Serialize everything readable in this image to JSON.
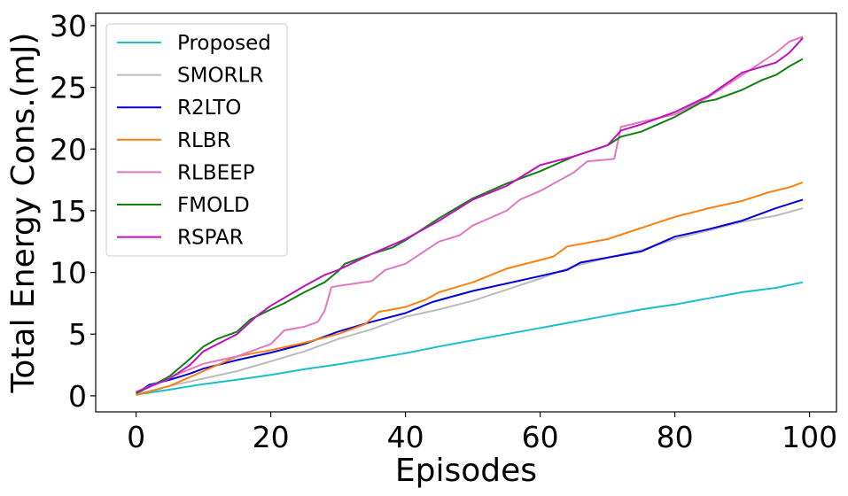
{
  "chart_data": {
    "type": "line",
    "xlabel": "Episodes",
    "ylabel": "Total Energy Cons.(mJ)",
    "xlim": [
      -6,
      104
    ],
    "ylim": [
      -1.3,
      31
    ],
    "xticks": [
      0,
      20,
      40,
      60,
      80,
      100
    ],
    "yticks": [
      0,
      5,
      10,
      15,
      20,
      25,
      30
    ],
    "grid": false,
    "legend_position": "top-left",
    "series": [
      {
        "name": "Proposed",
        "color": "#17becf",
        "points": [
          [
            0,
            0.1
          ],
          [
            5,
            0.5
          ],
          [
            10,
            0.95
          ],
          [
            15,
            1.3
          ],
          [
            20,
            1.7
          ],
          [
            25,
            2.15
          ],
          [
            30,
            2.55
          ],
          [
            35,
            3.0
          ],
          [
            40,
            3.45
          ],
          [
            45,
            4.0
          ],
          [
            50,
            4.5
          ],
          [
            55,
            5.0
          ],
          [
            60,
            5.5
          ],
          [
            65,
            6.0
          ],
          [
            70,
            6.5
          ],
          [
            75,
            7.0
          ],
          [
            80,
            7.4
          ],
          [
            85,
            7.9
          ],
          [
            90,
            8.4
          ],
          [
            95,
            8.75
          ],
          [
            99,
            9.2
          ]
        ]
      },
      {
        "name": "SMORLR",
        "color": "#bbbbbb",
        "points": [
          [
            0,
            0.15
          ],
          [
            3,
            0.5
          ],
          [
            5,
            0.8
          ],
          [
            10,
            1.4
          ],
          [
            15,
            2.0
          ],
          [
            20,
            2.8
          ],
          [
            25,
            3.6
          ],
          [
            30,
            4.6
          ],
          [
            35,
            5.4
          ],
          [
            40,
            6.4
          ],
          [
            45,
            7.0
          ],
          [
            50,
            7.7
          ],
          [
            55,
            8.6
          ],
          [
            60,
            9.5
          ],
          [
            65,
            10.5
          ],
          [
            70,
            11.2
          ],
          [
            75,
            11.8
          ],
          [
            80,
            12.7
          ],
          [
            85,
            13.4
          ],
          [
            90,
            14.1
          ],
          [
            95,
            14.6
          ],
          [
            99,
            15.2
          ]
        ]
      },
      {
        "name": "R2LTO",
        "color": "#0000dd",
        "points": [
          [
            0,
            0.2
          ],
          [
            2,
            0.9
          ],
          [
            5,
            1.3
          ],
          [
            8,
            1.8
          ],
          [
            10,
            2.2
          ],
          [
            15,
            2.9
          ],
          [
            20,
            3.5
          ],
          [
            25,
            4.2
          ],
          [
            30,
            5.2
          ],
          [
            35,
            6.0
          ],
          [
            40,
            6.7
          ],
          [
            44,
            7.6
          ],
          [
            48,
            8.2
          ],
          [
            50,
            8.5
          ],
          [
            55,
            9.1
          ],
          [
            60,
            9.7
          ],
          [
            64,
            10.2
          ],
          [
            66,
            10.8
          ],
          [
            70,
            11.2
          ],
          [
            75,
            11.7
          ],
          [
            80,
            12.9
          ],
          [
            85,
            13.5
          ],
          [
            90,
            14.2
          ],
          [
            95,
            15.2
          ],
          [
            99,
            15.9
          ]
        ]
      },
      {
        "name": "RLBR",
        "color": "#ff7f0e",
        "points": [
          [
            0,
            0.05
          ],
          [
            5,
            0.8
          ],
          [
            10,
            2.0
          ],
          [
            15,
            3.2
          ],
          [
            20,
            3.7
          ],
          [
            25,
            4.3
          ],
          [
            30,
            5.0
          ],
          [
            34,
            5.8
          ],
          [
            36,
            6.8
          ],
          [
            40,
            7.2
          ],
          [
            43,
            7.8
          ],
          [
            45,
            8.4
          ],
          [
            50,
            9.2
          ],
          [
            55,
            10.3
          ],
          [
            60,
            11.0
          ],
          [
            62,
            11.3
          ],
          [
            64,
            12.1
          ],
          [
            70,
            12.7
          ],
          [
            75,
            13.6
          ],
          [
            80,
            14.5
          ],
          [
            85,
            15.2
          ],
          [
            90,
            15.8
          ],
          [
            94,
            16.5
          ],
          [
            97,
            16.9
          ],
          [
            99,
            17.3
          ]
        ]
      },
      {
        "name": "RLBEEP",
        "color": "#e377c2",
        "points": [
          [
            0,
            0.3
          ],
          [
            5,
            1.5
          ],
          [
            10,
            2.6
          ],
          [
            15,
            3.2
          ],
          [
            20,
            4.2
          ],
          [
            22,
            5.3
          ],
          [
            25,
            5.6
          ],
          [
            27,
            6.0
          ],
          [
            28,
            6.9
          ],
          [
            29,
            8.8
          ],
          [
            30,
            8.9
          ],
          [
            35,
            9.3
          ],
          [
            37,
            10.2
          ],
          [
            40,
            10.7
          ],
          [
            45,
            12.5
          ],
          [
            48,
            13.0
          ],
          [
            50,
            13.8
          ],
          [
            55,
            15.0
          ],
          [
            57,
            15.9
          ],
          [
            60,
            16.6
          ],
          [
            65,
            18.1
          ],
          [
            67,
            19.0
          ],
          [
            71,
            19.2
          ],
          [
            72,
            21.8
          ],
          [
            75,
            22.2
          ],
          [
            80,
            22.8
          ],
          [
            85,
            24.2
          ],
          [
            90,
            26.0
          ],
          [
            95,
            27.8
          ],
          [
            97,
            28.7
          ],
          [
            99,
            29.1
          ]
        ]
      },
      {
        "name": "FMOLD",
        "color": "#108010",
        "points": [
          [
            0,
            0.2
          ],
          [
            3,
            1.0
          ],
          [
            5,
            1.6
          ],
          [
            8,
            3.0
          ],
          [
            10,
            4.0
          ],
          [
            12,
            4.6
          ],
          [
            15,
            5.2
          ],
          [
            17,
            6.2
          ],
          [
            20,
            7.0
          ],
          [
            22,
            7.5
          ],
          [
            25,
            8.4
          ],
          [
            28,
            9.2
          ],
          [
            30,
            10.1
          ],
          [
            31,
            10.7
          ],
          [
            35,
            11.5
          ],
          [
            38,
            12.0
          ],
          [
            40,
            12.6
          ],
          [
            45,
            14.4
          ],
          [
            50,
            16.0
          ],
          [
            55,
            17.2
          ],
          [
            60,
            18.2
          ],
          [
            65,
            19.4
          ],
          [
            70,
            20.3
          ],
          [
            72,
            21.0
          ],
          [
            75,
            21.4
          ],
          [
            80,
            22.6
          ],
          [
            84,
            23.8
          ],
          [
            86,
            24.0
          ],
          [
            90,
            24.8
          ],
          [
            93,
            25.6
          ],
          [
            95,
            26.0
          ],
          [
            97,
            26.7
          ],
          [
            99,
            27.3
          ]
        ]
      },
      {
        "name": "RSPAR",
        "color": "#c010c0",
        "points": [
          [
            0,
            0.3
          ],
          [
            5,
            1.4
          ],
          [
            8,
            2.5
          ],
          [
            10,
            3.6
          ],
          [
            15,
            5.0
          ],
          [
            18,
            6.5
          ],
          [
            20,
            7.3
          ],
          [
            25,
            8.9
          ],
          [
            28,
            9.8
          ],
          [
            30,
            10.2
          ],
          [
            35,
            11.5
          ],
          [
            40,
            12.7
          ],
          [
            45,
            14.2
          ],
          [
            50,
            15.9
          ],
          [
            55,
            17.0
          ],
          [
            60,
            18.7
          ],
          [
            65,
            19.4
          ],
          [
            70,
            20.3
          ],
          [
            72,
            21.5
          ],
          [
            75,
            22.0
          ],
          [
            80,
            23.0
          ],
          [
            85,
            24.3
          ],
          [
            90,
            26.2
          ],
          [
            95,
            27.0
          ],
          [
            97,
            27.8
          ],
          [
            99,
            29.0
          ]
        ]
      }
    ]
  }
}
